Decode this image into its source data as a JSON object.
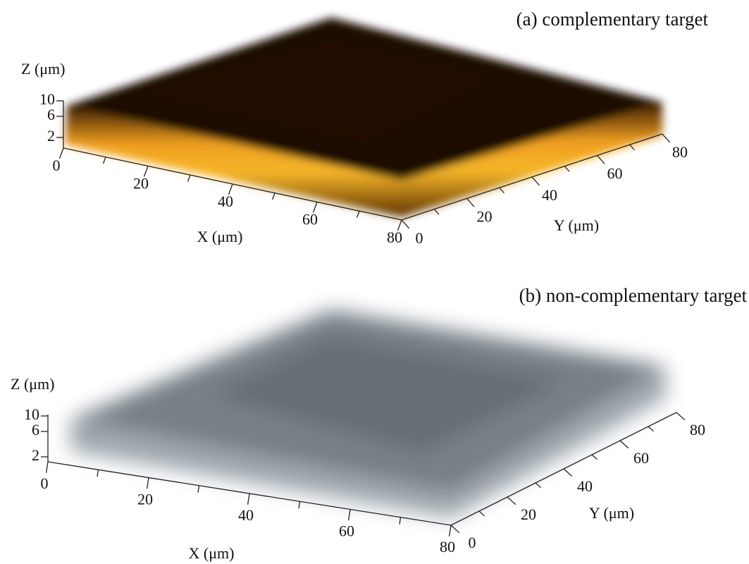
{
  "panels": [
    {
      "label": "(a) complementary target",
      "z_axis": {
        "title": "Z (μm)",
        "ticks": [
          "10",
          "6",
          "2"
        ]
      },
      "x_axis": {
        "title": "X (μm)",
        "ticks": [
          "0",
          "20",
          "40",
          "60",
          "80"
        ]
      },
      "y_axis": {
        "title": "Y (μm)",
        "ticks": [
          "0",
          "20",
          "40",
          "60",
          "80"
        ]
      }
    },
    {
      "label": "(b) non-complementary target",
      "z_axis": {
        "title": "Z (μm)",
        "ticks": [
          "10",
          "6",
          "2"
        ]
      },
      "x_axis": {
        "title": "X (μm)",
        "ticks": [
          "0",
          "20",
          "40",
          "60",
          "80"
        ]
      },
      "y_axis": {
        "title": "Y (μm)",
        "ticks": [
          "0",
          "20",
          "40",
          "60",
          "80"
        ]
      }
    }
  ]
}
